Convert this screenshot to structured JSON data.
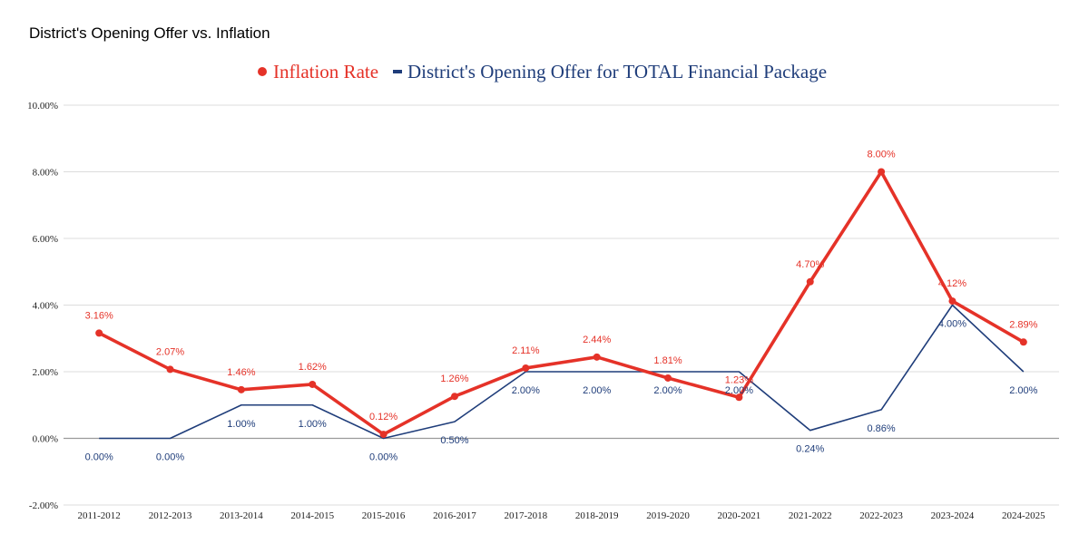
{
  "chart_data": {
    "type": "line",
    "title": "District's Opening Offer vs. Inflation",
    "xlabel": "",
    "ylabel": "",
    "ylim": [
      -2,
      10
    ],
    "y_ticks": [
      "-2.00%",
      "0.00%",
      "2.00%",
      "4.00%",
      "6.00%",
      "8.00%",
      "10.00%"
    ],
    "y_tick_values": [
      -2,
      0,
      2,
      4,
      6,
      8,
      10
    ],
    "grid": true,
    "legend_position": "top-center",
    "categories": [
      "2011-2012",
      "2012-2013",
      "2013-2014",
      "2014-2015",
      "2015-2016",
      "2016-2017",
      "2017-2018",
      "2018-2019",
      "2019-2020",
      "2020-2021",
      "2021-2022",
      "2022-2023",
      "2023-2024",
      "2024-2025"
    ],
    "series": [
      {
        "name": "Inflation Rate",
        "color": "#e53228",
        "values": [
          3.16,
          2.07,
          1.46,
          1.62,
          0.12,
          1.26,
          2.11,
          2.44,
          1.81,
          1.23,
          4.7,
          8.0,
          4.12,
          2.89
        ],
        "labels": [
          "3.16%",
          "2.07%",
          "1.46%",
          "1.62%",
          "0.12%",
          "1.26%",
          "2.11%",
          "2.44%",
          "1.81%",
          "1.23%",
          "4.70%",
          "8.00%",
          "4.12%",
          "2.89%"
        ]
      },
      {
        "name": "District's Opening Offer for TOTAL Financial Package",
        "color": "#1f3d7a",
        "values": [
          0.0,
          0.0,
          1.0,
          1.0,
          0.0,
          0.5,
          2.0,
          2.0,
          2.0,
          2.0,
          0.24,
          0.86,
          4.0,
          2.0
        ],
        "labels": [
          "0.00%",
          "0.00%",
          "1.00%",
          "1.00%",
          "0.00%",
          "0:50%",
          "2.00%",
          "2.00%",
          "2.00%",
          "2.00%",
          "0.24%",
          "0.86%",
          "4.00%",
          "2.00%"
        ]
      }
    ]
  }
}
